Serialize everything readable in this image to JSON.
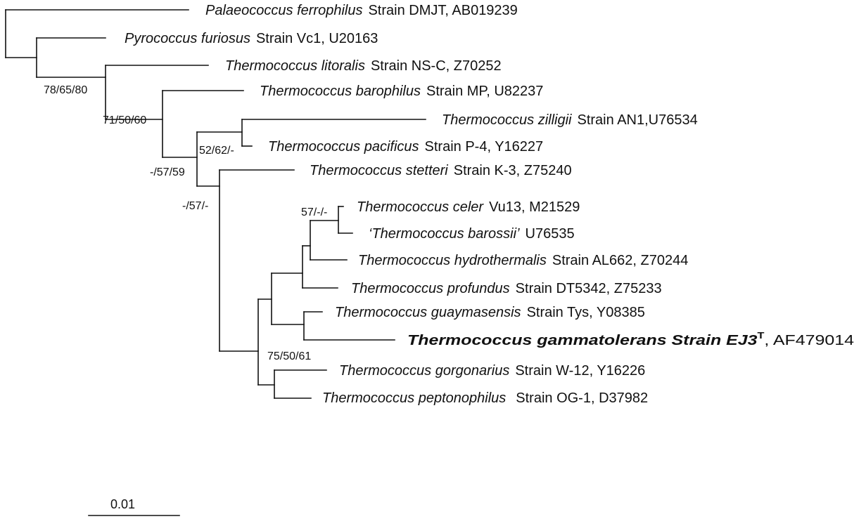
{
  "taxa": [
    {
      "genus_species": "Palaeococcus ferrophilus",
      "rest": "Strain DMJT, AB019239"
    },
    {
      "genus_species": "Pyrococcus furiosus",
      "rest": "Strain Vc1, U20163"
    },
    {
      "genus_species": "Thermococcus litoralis",
      "rest": "Strain NS-C, Z70252"
    },
    {
      "genus_species": "Thermococcus barophilus",
      "rest": "Strain MP, U82237"
    },
    {
      "genus_species": "Thermococcus zilligii",
      "rest": "Strain AN1,U76534"
    },
    {
      "genus_species": "Thermococcus pacificus",
      "rest": "Strain P-4, Y16227"
    },
    {
      "genus_species": "Thermococcus stetteri",
      "rest": "Strain K-3, Z75240"
    },
    {
      "genus_species": "Thermococcus celer",
      "rest": "Vu13, M21529"
    },
    {
      "genus_species": "‘Thermococcus barossii’",
      "rest": "U76535"
    },
    {
      "genus_species": "Thermococcus hydrothermalis",
      "rest": "Strain AL662, Z70244"
    },
    {
      "genus_species": "Thermococcus profundus",
      "rest": "Strain DT5342, Z75233"
    },
    {
      "genus_species": "Thermococcus guaymasensis",
      "rest": "Strain Tys, Y08385"
    },
    {
      "genus_species": "Thermococcus gammatolerans Strain EJ3",
      "superscript": "T",
      "rest": ", AF479014",
      "highlight": true
    },
    {
      "genus_species": "Thermococcus gorgonarius",
      "rest": "Strain W-12, Y16226"
    },
    {
      "genus_species": "Thermococcus peptonophilus",
      "rest": "Strain OG-1, D37982"
    }
  ],
  "support_values": [
    "78/65/80",
    "71/50/60",
    "52/62/-",
    "-/57/59",
    "-/57/-",
    "57/-/-",
    "75/50/61"
  ],
  "scale_bar": {
    "label": "0.01"
  }
}
